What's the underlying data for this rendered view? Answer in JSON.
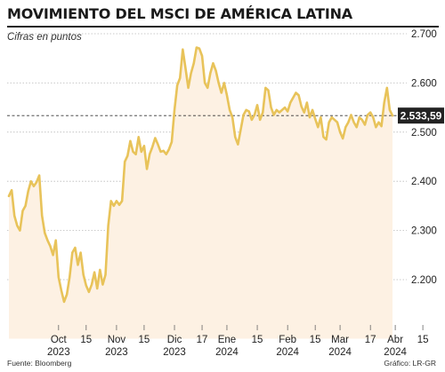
{
  "header": {
    "title": "MOVIMIENTO DEL MSCI DE AMÉRICA LATINA",
    "subtitle": "Cifras en puntos"
  },
  "footer": {
    "source": "Fuente: Bloomberg",
    "credit": "Gráfico: LR-GR"
  },
  "colors": {
    "line": "#e8c35a",
    "fill": "#fdf1e3",
    "grid": "#bbbbbb",
    "last_box": "#222222",
    "ref_line": "#333333"
  },
  "chart_data": {
    "type": "area",
    "title": "MOVIMIENTO DEL MSCI DE AMÉRICA LATINA",
    "subtitle": "Cifras en puntos",
    "ylim": [
      2080,
      2730
    ],
    "grid": "horizontal",
    "y_ticks": [
      {
        "value": 2700,
        "label": "2.700"
      },
      {
        "value": 2600,
        "label": "2.600"
      },
      {
        "value": 2500,
        "label": "2.500"
      },
      {
        "value": 2400,
        "label": "2.400"
      },
      {
        "value": 2300,
        "label": "2.300"
      },
      {
        "value": 2200,
        "label": "2.200"
      }
    ],
    "x_ticks": [
      {
        "index": 18,
        "line1": "Oct",
        "line2": "2023"
      },
      {
        "index": 28,
        "line1": "15",
        "line2": ""
      },
      {
        "index": 39,
        "line1": "Nov",
        "line2": "2023"
      },
      {
        "index": 49,
        "line1": "15",
        "line2": ""
      },
      {
        "index": 60,
        "line1": "Dic",
        "line2": "2023"
      },
      {
        "index": 70,
        "line1": "17",
        "line2": ""
      },
      {
        "index": 79,
        "line1": "Ene",
        "line2": "2024"
      },
      {
        "index": 90,
        "line1": "15",
        "line2": ""
      },
      {
        "index": 101,
        "line1": "Feb",
        "line2": "2024"
      },
      {
        "index": 111,
        "line1": "15",
        "line2": ""
      },
      {
        "index": 120,
        "line1": "Mar",
        "line2": "2024"
      },
      {
        "index": 131,
        "line1": "17",
        "line2": ""
      },
      {
        "index": 140,
        "line1": "Abr",
        "line2": "2024"
      },
      {
        "index": 150,
        "line1": "15",
        "line2": ""
      }
    ],
    "last_value": 2533.59,
    "last_label": "2.533,59",
    "values": [
      2370,
      2382,
      2330,
      2310,
      2300,
      2340,
      2350,
      2380,
      2400,
      2390,
      2398,
      2412,
      2330,
      2295,
      2280,
      2268,
      2250,
      2280,
      2205,
      2178,
      2155,
      2170,
      2205,
      2255,
      2265,
      2230,
      2255,
      2210,
      2188,
      2175,
      2190,
      2215,
      2182,
      2220,
      2190,
      2210,
      2310,
      2360,
      2350,
      2360,
      2352,
      2360,
      2440,
      2452,
      2482,
      2460,
      2455,
      2490,
      2460,
      2472,
      2425,
      2455,
      2470,
      2488,
      2475,
      2460,
      2462,
      2455,
      2465,
      2480,
      2545,
      2595,
      2610,
      2668,
      2630,
      2590,
      2620,
      2640,
      2672,
      2670,
      2655,
      2600,
      2590,
      2620,
      2640,
      2625,
      2600,
      2580,
      2600,
      2575,
      2545,
      2530,
      2490,
      2475,
      2505,
      2535,
      2545,
      2542,
      2525,
      2535,
      2555,
      2525,
      2540,
      2590,
      2585,
      2550,
      2535,
      2545,
      2540,
      2545,
      2550,
      2542,
      2560,
      2570,
      2580,
      2575,
      2552,
      2540,
      2560,
      2530,
      2545,
      2527,
      2510,
      2530,
      2490,
      2485,
      2520,
      2530,
      2525,
      2520,
      2500,
      2487,
      2510,
      2520,
      2535,
      2520,
      2510,
      2530,
      2525,
      2515,
      2535,
      2540,
      2530,
      2510,
      2520,
      2512,
      2560,
      2590,
      2545,
      2533.59
    ]
  }
}
